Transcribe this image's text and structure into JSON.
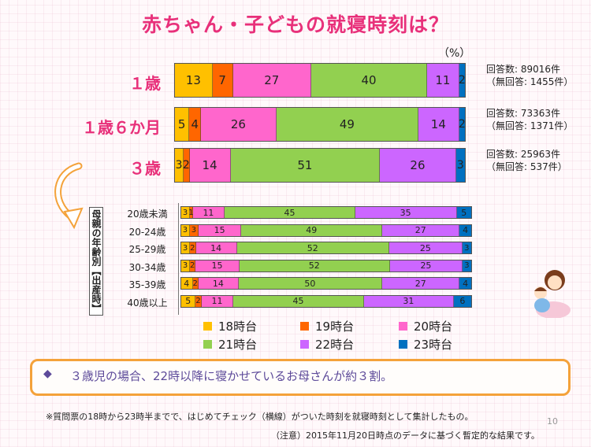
{
  "title": "赤ちゃん・子どもの就寝時刻は？",
  "unit": "（%）",
  "colors": {
    "18時台": "#ffc000",
    "19時台": "#ff6600",
    "20時台": "#ff66cc",
    "21時台": "#92d050",
    "22時台": "#cc66ff",
    "23時台": "#0070c0"
  },
  "chart_data": [
    {
      "type": "bar",
      "orientation": "horizontal-stacked-100",
      "categories": [
        "１歳",
        "１歳６か月",
        "３歳"
      ],
      "series": [
        {
          "name": "18時台",
          "values": [
            13,
            5,
            3
          ]
        },
        {
          "name": "19時台",
          "values": [
            7,
            4,
            2
          ]
        },
        {
          "name": "20時台",
          "values": [
            27,
            26,
            14
          ]
        },
        {
          "name": "21時台",
          "values": [
            40,
            49,
            51
          ]
        },
        {
          "name": "22時台",
          "values": [
            11,
            14,
            26
          ]
        },
        {
          "name": "23時台",
          "values": [
            2,
            2,
            3
          ]
        }
      ],
      "responses": [
        {
          "count": "回答数: 89016件",
          "noanswer": "（無回答: 1455件）"
        },
        {
          "count": "回答数: 73363件",
          "noanswer": "（無回答: 1371件）"
        },
        {
          "count": "回答数: 25963件",
          "noanswer": "（無回答: 537件）"
        }
      ]
    },
    {
      "type": "bar",
      "orientation": "horizontal-stacked-100",
      "group_label": "母親の年齢別【出産時】",
      "categories": [
        "20歳未満",
        "20-24歳",
        "25-29歳",
        "30-34歳",
        "35-39歳",
        "40歳以上"
      ],
      "series": [
        {
          "name": "18時台",
          "values": [
            3,
            3,
            3,
            3,
            4,
            5
          ]
        },
        {
          "name": "19時台",
          "values": [
            1,
            3,
            2,
            2,
            2,
            2
          ]
        },
        {
          "name": "20時台",
          "values": [
            11,
            15,
            14,
            15,
            14,
            11
          ]
        },
        {
          "name": "21時台",
          "values": [
            45,
            49,
            52,
            52,
            50,
            45
          ]
        },
        {
          "name": "22時台",
          "values": [
            35,
            27,
            25,
            25,
            27,
            31
          ]
        },
        {
          "name": "23時台",
          "values": [
            5,
            4,
            3,
            3,
            4,
            6
          ]
        }
      ],
      "legend": [
        "18時台",
        "19時台",
        "20時台",
        "21時台",
        "22時台",
        "23時台"
      ],
      "legend_placement": "bottom"
    }
  ],
  "note": "３歳児の場合、22時以降に寝かせているお母さんが約３割。",
  "footnote": "※質問票の18時から23時半までで、はじめてチェック（横線）がついた時刻を就寝時刻として集計したもの。",
  "caution": "（注意）2015年11月20日時点のデータに基づく暫定的な結果です。",
  "page_number": "10"
}
